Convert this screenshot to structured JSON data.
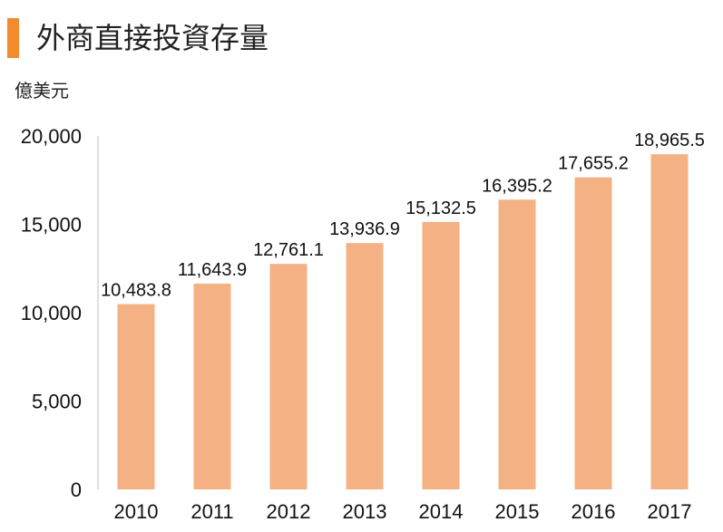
{
  "header": {
    "title": "外商直接投資存量",
    "unit": "億美元",
    "accent_color": "#F28A2E"
  },
  "chart_data": {
    "type": "bar",
    "categories": [
      "2010",
      "2011",
      "2012",
      "2013",
      "2014",
      "2015",
      "2016",
      "2017"
    ],
    "values": [
      10483.8,
      11643.9,
      12761.1,
      13936.9,
      15132.5,
      16395.2,
      17655.2,
      18965.5
    ],
    "value_labels": [
      "10,483.8",
      "11,643.9",
      "12,761.1",
      "13,936.9",
      "15,132.5",
      "16,395.2",
      "17,655.2",
      "18,965.5"
    ],
    "ylim": [
      0,
      20000
    ],
    "yticks": [
      0,
      5000,
      10000,
      15000,
      20000
    ],
    "ytick_labels": [
      "0",
      "5,000",
      "10,000",
      "15,000",
      "20,000"
    ],
    "ylabel": "億美元",
    "grid": false,
    "bar_color": "#F4B183"
  }
}
